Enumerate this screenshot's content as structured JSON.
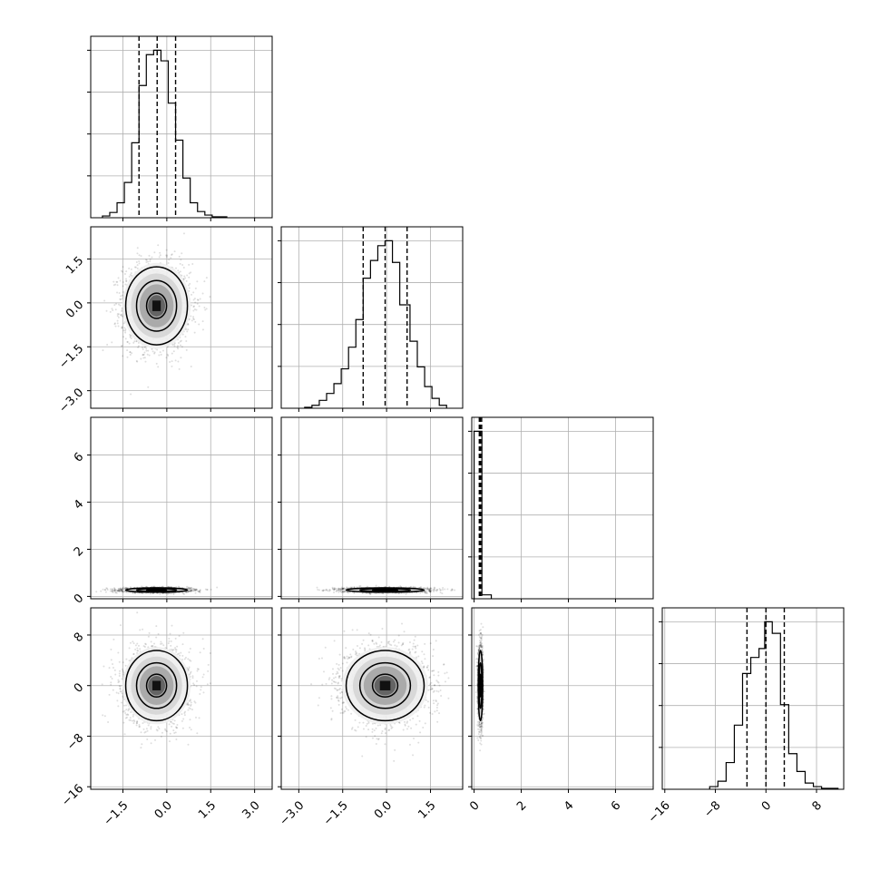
{
  "chart_data": {
    "type": "corner",
    "title": "",
    "n_params": 4,
    "grid": true,
    "quantile_lines": "dashed",
    "params": [
      {
        "index": 0,
        "range": [
          -2.6,
          3.6
        ],
        "ticks": [
          -1.5,
          0.0,
          1.5,
          3.0
        ],
        "tick_labels": [
          "−1.5",
          "0.0",
          "1.5",
          "3.0"
        ],
        "quantiles": [
          -0.95,
          -0.33,
          0.3
        ],
        "hist": {
          "bin_edges": [
            -2.2,
            -1.95,
            -1.7,
            -1.45,
            -1.2,
            -0.95,
            -0.7,
            -0.45,
            -0.2,
            0.05,
            0.3,
            0.55,
            0.8,
            1.05,
            1.3,
            1.55,
            1.8,
            2.05
          ],
          "counts": [
            2,
            6,
            17,
            40,
            85,
            150,
            185,
            190,
            178,
            130,
            88,
            45,
            17,
            7,
            3,
            1,
            1
          ]
        }
      },
      {
        "index": 1,
        "range": [
          -3.6,
          2.6
        ],
        "ticks": [
          -3.0,
          -1.5,
          0.0,
          1.5
        ],
        "tick_labels": [
          "−3.0",
          "−1.5",
          "0.0",
          "1.5"
        ],
        "quantiles": [
          -0.8,
          -0.05,
          0.7
        ],
        "hist": {
          "bin_edges": [
            -2.8,
            -2.55,
            -2.3,
            -2.05,
            -1.8,
            -1.55,
            -1.3,
            -1.05,
            -0.8,
            -0.55,
            -0.3,
            -0.05,
            0.2,
            0.45,
            0.8,
            1.05,
            1.3,
            1.55,
            1.8,
            2.05
          ],
          "counts": [
            1,
            3,
            8,
            15,
            25,
            40,
            62,
            90,
            132,
            150,
            165,
            170,
            148,
            105,
            68,
            42,
            22,
            10,
            3
          ]
        }
      },
      {
        "index": 2,
        "range": [
          -0.1,
          7.6
        ],
        "ticks": [
          0,
          2,
          4,
          6
        ],
        "tick_labels": [
          "0",
          "2",
          "4",
          "6"
        ],
        "quantiles": [
          0.22,
          0.27,
          0.32
        ],
        "hist": {
          "bin_edges": [
            0.0,
            0.33,
            0.73
          ],
          "counts": [
            4060,
            95
          ]
        }
      },
      {
        "index": 3,
        "range": [
          -16.4,
          12.3
        ],
        "ticks": [
          -16,
          -8,
          0,
          8
        ],
        "tick_labels": [
          "−16",
          "−8",
          "0",
          "8"
        ],
        "quantiles": [
          -3.0,
          0.0,
          2.9
        ],
        "hist": {
          "bin_edges": [
            -8.9,
            -7.6,
            -6.3,
            -5.0,
            -3.7,
            -2.4,
            -1.1,
            -0.2,
            1.0,
            2.3,
            3.6,
            4.9,
            6.2,
            7.5,
            8.8,
            10.1,
            11.4
          ],
          "counts": [
            3,
            9,
            30,
            72,
            130,
            148,
            158,
            188,
            175,
            95,
            40,
            20,
            7,
            3,
            1,
            1
          ]
        }
      }
    ],
    "scatter_cells": [
      {
        "row": 1,
        "col": 0,
        "center": [
          -0.35,
          -0.1
        ],
        "sigma": [
          0.57,
          0.72
        ],
        "corr": 0.0
      },
      {
        "row": 2,
        "col": 0,
        "center": [
          -0.35,
          0.27
        ],
        "sigma": [
          0.57,
          0.05
        ],
        "corr": 0.0
      },
      {
        "row": 2,
        "col": 1,
        "center": [
          -0.05,
          0.27
        ],
        "sigma": [
          0.72,
          0.05
        ],
        "corr": 0.0
      },
      {
        "row": 3,
        "col": 0,
        "center": [
          -0.35,
          0.0
        ],
        "sigma": [
          0.57,
          3.0
        ],
        "corr": 0.0
      },
      {
        "row": 3,
        "col": 1,
        "center": [
          -0.05,
          0.0
        ],
        "sigma": [
          0.72,
          3.0
        ],
        "corr": 0.0
      },
      {
        "row": 3,
        "col": 2,
        "center": [
          0.27,
          0.0
        ],
        "sigma": [
          0.05,
          3.0
        ],
        "corr": 0.0
      }
    ]
  }
}
